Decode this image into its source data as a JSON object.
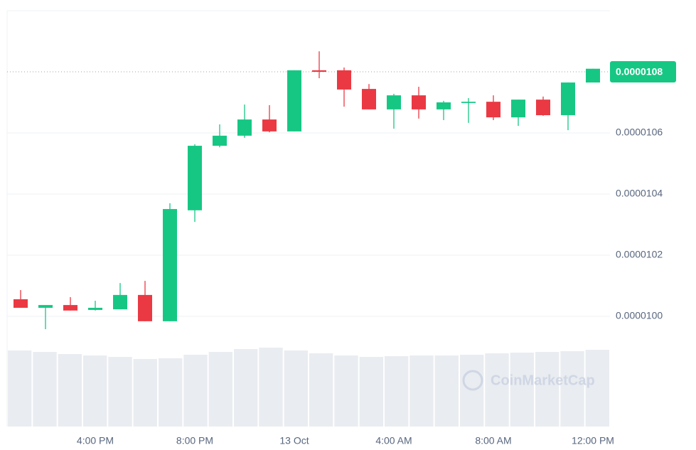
{
  "chart_data": {
    "type": "candlestick",
    "categories": [
      null,
      null,
      null,
      "4:00 PM",
      null,
      null,
      null,
      "8:00 PM",
      null,
      null,
      null,
      "13 Oct",
      null,
      null,
      null,
      "4:00 AM",
      null,
      null,
      null,
      "8:00 AM",
      null,
      null,
      null,
      "12:00 PM"
    ],
    "open": [
      1.0056e-05,
      1.0028e-05,
      1.0037e-05,
      1.0021e-05,
      1.0023e-05,
      1.007e-05,
      9.984e-06,
      1.0347e-05,
      1.0558e-05,
      1.0591e-05,
      1.0644e-05,
      1.0605e-05,
      1.0805e-05,
      1.0805e-05,
      1.0744e-05,
      1.0677e-05,
      1.0723e-05,
      1.0677e-05,
      1.0698e-05,
      1.0702e-05,
      1.0651e-05,
      1.0709e-05,
      1.0658e-05,
      1.0765e-05
    ],
    "high": [
      1.0086e-05,
      1.0037e-05,
      1.0063e-05,
      1.0051e-05,
      1.0109e-05,
      1.0116e-05,
      1.037e-05,
      1.0563e-05,
      1.0628e-05,
      1.0693e-05,
      1.0691e-05,
      1.0805e-05,
      1.0867e-05,
      1.0814e-05,
      1.076e-05,
      1.0728e-05,
      1.0751e-05,
      1.0705e-05,
      1.0714e-05,
      1.0723e-05,
      1.0709e-05,
      1.0719e-05,
      1.0765e-05,
      1.081e-05
    ],
    "low": [
      1.0028e-05,
      9.958e-06,
      1.0019e-05,
      1.0019e-05,
      1.0023e-05,
      9.984e-06,
      9.984e-06,
      1.0309e-05,
      1.0553e-05,
      1.0584e-05,
      1.0602e-05,
      1.0605e-05,
      1.0779e-05,
      1.0686e-05,
      1.0677e-05,
      1.0614e-05,
      1.0647e-05,
      1.0642e-05,
      1.0633e-05,
      1.0642e-05,
      1.0623e-05,
      1.0656e-05,
      1.0609e-05,
      1.0765e-05
    ],
    "close": [
      1.0028e-05,
      1.0037e-05,
      1.0019e-05,
      1.0028e-05,
      1.007e-05,
      9.984e-06,
      1.0351e-05,
      1.0558e-05,
      1.0591e-05,
      1.0644e-05,
      1.0605e-05,
      1.0805e-05,
      1.08e-05,
      1.0742e-05,
      1.0677e-05,
      1.0723e-05,
      1.0677e-05,
      1.07e-05,
      1.0702e-05,
      1.0651e-05,
      1.0709e-05,
      1.0658e-05,
      1.0765e-05,
      1.081e-05
    ],
    "up_color": "#16c784",
    "down_color": "#ea3943",
    "volume": {
      "values": [
        107,
        105,
        102,
        100,
        98,
        95,
        96,
        101,
        105,
        109,
        111,
        107,
        103,
        100,
        98,
        99,
        100,
        100,
        101,
        103,
        104,
        105,
        106,
        108
      ],
      "color": "#e9ecf0"
    },
    "volume_lim": [
      0,
      110
    ],
    "ylim": [
      9.9e-06,
      1.1e-05
    ],
    "yticks": [
      {
        "value": 1e-05,
        "label": "0.0000100"
      },
      {
        "value": 1.02e-05,
        "label": "0.0000102"
      },
      {
        "value": 1.04e-05,
        "label": "0.0000104"
      },
      {
        "value": 1.06e-05,
        "label": "0.0000106"
      }
    ],
    "last_price": {
      "value": 1.08e-05,
      "label": "0.0000108"
    },
    "watermark": "CoinMarketCap",
    "grid": true
  }
}
